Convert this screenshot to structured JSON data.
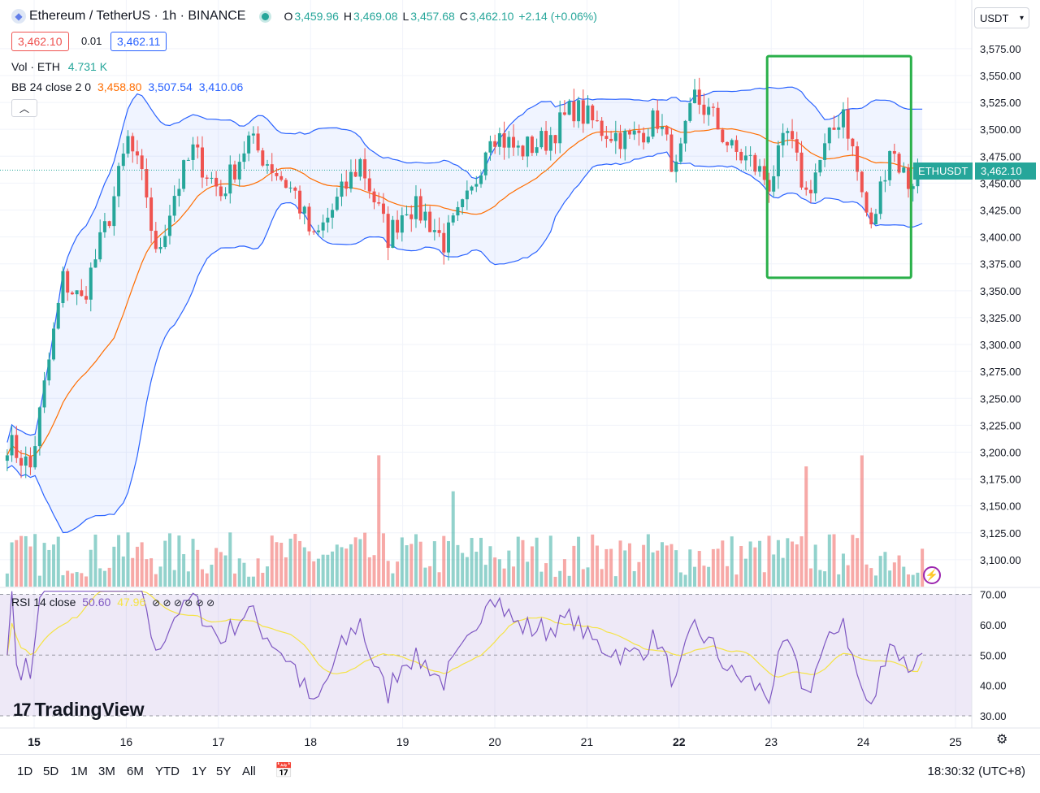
{
  "header": {
    "symbol_icon": "ethereum-icon",
    "title": "Ethereum / TetherUS · 1h · BINANCE",
    "ohlc": [
      {
        "k": "O",
        "v": "3,459.96"
      },
      {
        "k": "H",
        "v": "3,469.08"
      },
      {
        "k": "L",
        "v": "3,457.68"
      },
      {
        "k": "C",
        "v": "3,462.10"
      }
    ],
    "change": "+2.14 (+0.06%)",
    "sell_price": "3,462.10",
    "spread": "0.01",
    "buy_price": "3,462.11"
  },
  "indicators": {
    "vol_name": "Vol · ETH",
    "vol_value": "4.731 K",
    "bb_name": "BB 24 close 2 0",
    "bb_basis": "3,458.80",
    "bb_upper": "3,507.54",
    "bb_lower": "3,410.06",
    "rsi_name": "RSI 14 close",
    "rsi_value": "50.60",
    "rsi_ma": "47.96",
    "rsi_hidden_marks": "⊘ ⊘ ⊘ ⊘ ⊘ ⊘",
    "collapse_icon": "chevron-up-icon"
  },
  "currency_select": {
    "label": "USDT",
    "icon": "chevron-down-icon"
  },
  "ticker_label": {
    "symbol": "ETHUSDT",
    "price": "3,462.10"
  },
  "price_axis": [
    "3,575.00",
    "3,550.00",
    "3,525.00",
    "3,500.00",
    "3,475.00",
    "3,450.00",
    "3,425.00",
    "3,400.00",
    "3,375.00",
    "3,350.00",
    "3,325.00",
    "3,300.00",
    "3,275.00",
    "3,250.00",
    "3,225.00",
    "3,200.00",
    "3,175.00",
    "3,150.00",
    "3,125.00",
    "3,100.00"
  ],
  "rsi_axis": [
    "70.00",
    "60.00",
    "50.00",
    "40.00",
    "30.00"
  ],
  "time_axis": [
    "15",
    "16",
    "17",
    "18",
    "19",
    "20",
    "21",
    "22",
    "23",
    "24",
    "25"
  ],
  "time_axis_bold": "22",
  "branding": {
    "logo": "TradingView",
    "logo_icon": "tradingview-logo-icon"
  },
  "toolbar": {
    "ranges": [
      "1D",
      "5D",
      "1M",
      "3M",
      "6M",
      "YTD",
      "1Y",
      "5Y",
      "All"
    ],
    "calendar_icon": "calendar-goto-icon",
    "clock": "18:30:32 (UTC+8)",
    "settings_icon": "gear-icon",
    "bolt_icon": "lightning-icon"
  },
  "colors": {
    "up": "#26a69a",
    "down": "#ef5350",
    "bb_band": "#2962ff",
    "bb_basis": "#ff6d00",
    "rsi_line": "#7e57c2",
    "rsi_ma": "#f5e346",
    "highlight_box": "#2ab04a"
  },
  "chart_data": {
    "type": "candlestick",
    "symbol": "ETHUSDT",
    "interval": "1h",
    "x_range": [
      "15",
      "25"
    ],
    "y_range": [
      3075,
      3590
    ],
    "anchors": [
      {
        "t": 0,
        "price": 3210
      },
      {
        "t": 5,
        "price": 3185
      },
      {
        "t": 8,
        "price": 3260
      },
      {
        "t": 12,
        "price": 3360
      },
      {
        "t": 16,
        "price": 3340
      },
      {
        "t": 22,
        "price": 3420
      },
      {
        "t": 26,
        "price": 3490
      },
      {
        "t": 30,
        "price": 3440
      },
      {
        "t": 32,
        "price": 3380
      },
      {
        "t": 36,
        "price": 3440
      },
      {
        "t": 40,
        "price": 3480
      },
      {
        "t": 46,
        "price": 3440
      },
      {
        "t": 52,
        "price": 3490
      },
      {
        "t": 56,
        "price": 3470
      },
      {
        "t": 62,
        "price": 3440
      },
      {
        "t": 66,
        "price": 3395
      },
      {
        "t": 72,
        "price": 3440
      },
      {
        "t": 76,
        "price": 3470
      },
      {
        "t": 82,
        "price": 3400
      },
      {
        "t": 86,
        "price": 3430
      },
      {
        "t": 90,
        "price": 3420
      },
      {
        "t": 94,
        "price": 3395
      },
      {
        "t": 100,
        "price": 3440
      },
      {
        "t": 104,
        "price": 3500
      },
      {
        "t": 110,
        "price": 3480
      },
      {
        "t": 116,
        "price": 3490
      },
      {
        "t": 122,
        "price": 3520
      },
      {
        "t": 128,
        "price": 3500
      },
      {
        "t": 134,
        "price": 3490
      },
      {
        "t": 140,
        "price": 3510
      },
      {
        "t": 144,
        "price": 3460
      },
      {
        "t": 148,
        "price": 3530
      },
      {
        "t": 152,
        "price": 3510
      },
      {
        "t": 156,
        "price": 3480
      },
      {
        "t": 160,
        "price": 3470
      },
      {
        "t": 164,
        "price": 3450
      },
      {
        "t": 168,
        "price": 3495
      },
      {
        "t": 172,
        "price": 3440
      },
      {
        "t": 176,
        "price": 3480
      },
      {
        "t": 180,
        "price": 3520
      },
      {
        "t": 184,
        "price": 3440
      },
      {
        "t": 186,
        "price": 3405
      },
      {
        "t": 190,
        "price": 3485
      },
      {
        "t": 194,
        "price": 3450
      },
      {
        "t": 197,
        "price": 3462.1
      }
    ],
    "last": {
      "open": 3459.96,
      "high": 3469.08,
      "low": 3457.68,
      "close": 3462.1
    },
    "bollinger": {
      "period": 24,
      "std": 2,
      "basis": 3458.8,
      "upper": 3507.54,
      "lower": 3410.06
    },
    "volume_last": "4.731 K",
    "rsi": {
      "period": 14,
      "value": 50.6,
      "ma": 47.96,
      "levels": [
        70,
        50,
        30
      ],
      "range": [
        26,
        72
      ]
    },
    "highlight": {
      "from_price": 3568,
      "to_price": 3362,
      "from_day": 23.0,
      "to_day": 24.5
    }
  }
}
